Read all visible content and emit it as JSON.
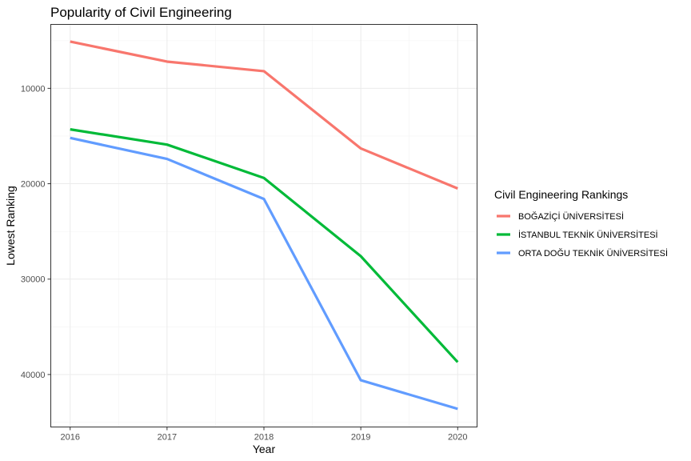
{
  "chart_data": {
    "type": "line",
    "title": "Popularity of Civil Engineering",
    "xlabel": "Year",
    "ylabel": "Lowest Ranking",
    "x": [
      2016,
      2017,
      2018,
      2019,
      2020
    ],
    "x_ticks": [
      "2016",
      "2017",
      "2018",
      "2019",
      "2020"
    ],
    "y_ticks": [
      10000,
      20000,
      30000,
      40000
    ],
    "y_tick_labels": [
      "10000",
      "20000",
      "30000",
      "40000"
    ],
    "y_reversed": true,
    "ylim": [
      45500,
      3300
    ],
    "xlim": [
      2015.8,
      2020.2
    ],
    "grid": true,
    "legend_position": "right",
    "legend_title": "Civil Engineering Rankings",
    "series": [
      {
        "name": "BOĞAZİÇİ ÜNİVERSİTESİ",
        "color": "#F8766D",
        "values": [
          5100,
          7200,
          8200,
          16300,
          20500
        ]
      },
      {
        "name": "İSTANBUL TEKNİK ÜNİVERSİTESİ",
        "color": "#00BA38",
        "values": [
          14300,
          15900,
          19400,
          27600,
          38700
        ]
      },
      {
        "name": "ORTA DOĞU TEKNİK ÜNİVERSİTESİ",
        "color": "#619CFF",
        "values": [
          15200,
          17400,
          21600,
          40600,
          43600
        ]
      }
    ]
  }
}
